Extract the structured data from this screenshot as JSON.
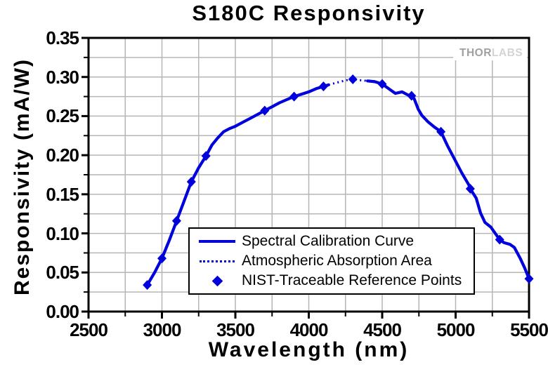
{
  "chart_data": {
    "type": "line",
    "title": "S180C Responsivity",
    "xlabel": "Wavelength (nm)",
    "ylabel": "Responsivity (mA/W)",
    "xlim": [
      2500,
      5500
    ],
    "ylim": [
      0,
      0.35
    ],
    "x_tick_values": [
      2500,
      3000,
      3500,
      4000,
      4500,
      5000,
      5500
    ],
    "x_tick_labels": [
      "2500",
      "3000",
      "3500",
      "4000",
      "4500",
      "5000",
      "5500"
    ],
    "y_tick_values": [
      0.0,
      0.05,
      0.1,
      0.15,
      0.2,
      0.25,
      0.3,
      0.35
    ],
    "y_tick_labels": [
      "0.00",
      "0.05",
      "0.10",
      "0.15",
      "0.20",
      "0.25",
      "0.30",
      "0.35"
    ],
    "x_minor_step": 250,
    "y_minor_step": 0.025,
    "grid": {
      "shown": true,
      "x_step": 250,
      "y_step": 0.025
    },
    "colors": {
      "curve": "#0000dd",
      "grid": "#b6b6b6",
      "axis": "#000000",
      "text": "#000000",
      "watermark_dark": "#a0a0a0",
      "watermark_light": "#d4d4d4"
    },
    "legend": {
      "position": "inside lower-center",
      "entries": [
        {
          "label": "Spectral Calibration Curve",
          "swatch": "solid-line"
        },
        {
          "label": "Atmospheric Absorption Area",
          "swatch": "dotted-line"
        },
        {
          "label": "NIST-Traceable Reference Points",
          "swatch": "diamond-marker"
        }
      ]
    },
    "series": [
      {
        "name": "Spectral Calibration Curve",
        "style": "solid",
        "segments": [
          [
            [
              2900,
              0.034
            ],
            [
              2950,
              0.05
            ],
            [
              3000,
              0.068
            ],
            [
              3050,
              0.091
            ],
            [
              3100,
              0.116
            ],
            [
              3150,
              0.141
            ],
            [
              3200,
              0.166
            ],
            [
              3250,
              0.184
            ],
            [
              3300,
              0.199
            ],
            [
              3340,
              0.213
            ],
            [
              3380,
              0.222
            ],
            [
              3420,
              0.23
            ],
            [
              3460,
              0.234
            ],
            [
              3500,
              0.237
            ],
            [
              3550,
              0.242
            ],
            [
              3600,
              0.247
            ],
            [
              3650,
              0.252
            ],
            [
              3700,
              0.257
            ],
            [
              3750,
              0.262
            ],
            [
              3800,
              0.267
            ],
            [
              3850,
              0.271
            ],
            [
              3900,
              0.275
            ],
            [
              3950,
              0.278
            ],
            [
              4000,
              0.281
            ],
            [
              4050,
              0.285
            ],
            [
              4100,
              0.288
            ],
            [
              4135,
              0.29
            ]
          ],
          [
            [
              4400,
              0.295
            ],
            [
              4450,
              0.294
            ],
            [
              4500,
              0.291
            ],
            [
              4560,
              0.283
            ],
            [
              4590,
              0.279
            ],
            [
              4635,
              0.281
            ],
            [
              4675,
              0.277
            ],
            [
              4700,
              0.276
            ],
            [
              4718,
              0.272
            ],
            [
              4745,
              0.259
            ],
            [
              4770,
              0.251
            ],
            [
              4810,
              0.243
            ],
            [
              4855,
              0.236
            ],
            [
              4900,
              0.23
            ],
            [
              4945,
              0.212
            ],
            [
              4995,
              0.194
            ],
            [
              5040,
              0.178
            ],
            [
              5090,
              0.162
            ],
            [
              5100,
              0.157
            ],
            [
              5140,
              0.145
            ],
            [
              5170,
              0.126
            ],
            [
              5200,
              0.114
            ],
            [
              5240,
              0.108
            ],
            [
              5270,
              0.1
            ],
            [
              5300,
              0.092
            ],
            [
              5330,
              0.088
            ],
            [
              5370,
              0.086
            ],
            [
              5400,
              0.082
            ],
            [
              5440,
              0.068
            ],
            [
              5470,
              0.056
            ],
            [
              5500,
              0.042
            ]
          ]
        ]
      },
      {
        "name": "Atmospheric Absorption Area",
        "style": "dotted",
        "points": [
          [
            4135,
            0.29
          ],
          [
            4175,
            0.292
          ],
          [
            4215,
            0.294
          ],
          [
            4260,
            0.296
          ],
          [
            4300,
            0.297
          ],
          [
            4345,
            0.296
          ],
          [
            4400,
            0.295
          ]
        ]
      },
      {
        "name": "NIST-Traceable Reference Points",
        "style": "diamond-marker",
        "points": [
          [
            2900,
            0.034
          ],
          [
            3000,
            0.068
          ],
          [
            3100,
            0.116
          ],
          [
            3200,
            0.166
          ],
          [
            3300,
            0.199
          ],
          [
            3700,
            0.257
          ],
          [
            3900,
            0.275
          ],
          [
            4100,
            0.288
          ],
          [
            4300,
            0.297
          ],
          [
            4500,
            0.291
          ],
          [
            4700,
            0.276
          ],
          [
            4900,
            0.23
          ],
          [
            5100,
            0.157
          ],
          [
            5300,
            0.092
          ],
          [
            5500,
            0.042
          ]
        ]
      }
    ]
  },
  "branding": {
    "watermark_part1": "THOR",
    "watermark_part2": "LABS"
  }
}
